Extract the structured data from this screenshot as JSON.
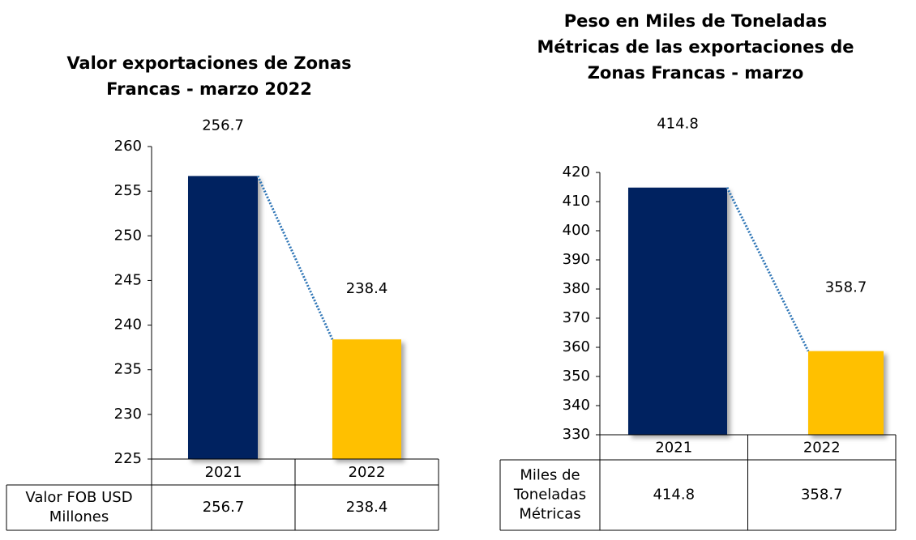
{
  "chart_data": [
    {
      "type": "bar",
      "title": "Valor exportaciones de Zonas Francas - marzo 2022",
      "categories": [
        "2021",
        "2022"
      ],
      "series": [
        {
          "name": "Valor FOB USD Millones",
          "values": [
            256.7,
            238.4
          ]
        }
      ],
      "colors": [
        "#002060",
        "#FFC000"
      ],
      "ylim": [
        225,
        260
      ],
      "yticks": [
        225,
        230,
        235,
        240,
        245,
        250,
        255,
        260
      ]
    },
    {
      "type": "bar",
      "title": "Peso en Miles de Toneladas Métricas de las exportaciones de Zonas Francas - marzo",
      "categories": [
        "2021",
        "2022"
      ],
      "series": [
        {
          "name": "Miles de Toneladas Métricas",
          "values": [
            414.8,
            358.7
          ]
        }
      ],
      "colors": [
        "#002060",
        "#FFC000"
      ],
      "ylim": [
        330,
        420
      ],
      "yticks": [
        330,
        340,
        350,
        360,
        370,
        380,
        390,
        400,
        410,
        420
      ]
    }
  ]
}
